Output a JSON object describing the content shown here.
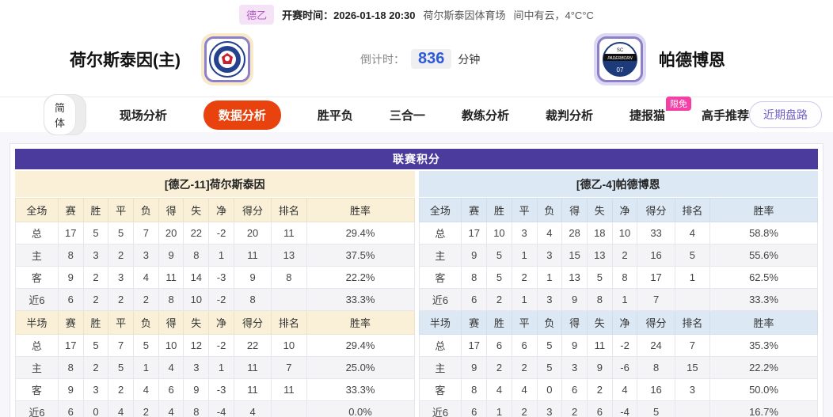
{
  "top_bar": {
    "league_badge": "德乙",
    "kickoff_label": "开赛时间：",
    "kickoff_time": "2026-01-18 20:30",
    "venue": "荷尔斯泰因体育场",
    "weather": "间中有云，4°C°C"
  },
  "match_header": {
    "home_name": "荷尔斯泰因(主)",
    "away_name": "帕德博恩",
    "countdown_label": "倒计时：",
    "countdown_value": "836",
    "countdown_unit": "分钟"
  },
  "nav": {
    "lang_simplified": "简体",
    "lang_traditional": "繁体",
    "tabs": [
      {
        "label": "现场分析"
      },
      {
        "label": "数据分析",
        "active": true
      },
      {
        "label": "胜平负"
      },
      {
        "label": "三合一"
      },
      {
        "label": "教练分析"
      },
      {
        "label": "裁判分析"
      },
      {
        "label": "捷报猫",
        "badge": "限免"
      },
      {
        "label": "高手推荐"
      }
    ],
    "recent_trend_button": "近期盘路"
  },
  "league_table": {
    "title": "联赛积分",
    "home_title": "[德乙-11]荷尔斯泰因",
    "away_title": "[德乙-4]帕德博恩",
    "columns_full": [
      "全场",
      "赛",
      "胜",
      "平",
      "负",
      "得",
      "失",
      "净",
      "得分",
      "排名",
      "胜率"
    ],
    "columns_half": [
      "半场",
      "赛",
      "胜",
      "平",
      "负",
      "得",
      "失",
      "净",
      "得分",
      "排名",
      "胜率"
    ],
    "home_full": [
      {
        "label": "总",
        "type": "total",
        "cells": [
          "17",
          "5",
          "5",
          "7",
          "20",
          "22",
          "-2",
          "20",
          "11",
          "29.4%"
        ]
      },
      {
        "label": "主",
        "type": "home",
        "cells": [
          "8",
          "3",
          "2",
          "3",
          "9",
          "8",
          "1",
          "11",
          "13",
          "37.5%"
        ]
      },
      {
        "label": "客",
        "type": "away",
        "cells": [
          "9",
          "2",
          "3",
          "4",
          "11",
          "14",
          "-3",
          "9",
          "8",
          "22.2%"
        ]
      },
      {
        "label": "近6",
        "type": "recent",
        "cells": [
          "6",
          "2",
          "2",
          "2",
          "8",
          "10",
          "-2",
          "8",
          "",
          "33.3%"
        ]
      }
    ],
    "home_half": [
      {
        "label": "总",
        "type": "total",
        "cells": [
          "17",
          "5",
          "7",
          "5",
          "10",
          "12",
          "-2",
          "22",
          "10",
          "29.4%"
        ]
      },
      {
        "label": "主",
        "type": "home",
        "cells": [
          "8",
          "2",
          "5",
          "1",
          "4",
          "3",
          "1",
          "11",
          "7",
          "25.0%"
        ]
      },
      {
        "label": "客",
        "type": "away",
        "cells": [
          "9",
          "3",
          "2",
          "4",
          "6",
          "9",
          "-3",
          "11",
          "11",
          "33.3%"
        ]
      },
      {
        "label": "近6",
        "type": "recent",
        "cells": [
          "6",
          "0",
          "4",
          "2",
          "4",
          "8",
          "-4",
          "4",
          "",
          "0.0%"
        ]
      }
    ],
    "away_full": [
      {
        "label": "总",
        "type": "total",
        "cells": [
          "17",
          "10",
          "3",
          "4",
          "28",
          "18",
          "10",
          "33",
          "4",
          "58.8%"
        ]
      },
      {
        "label": "主",
        "type": "home",
        "cells": [
          "9",
          "5",
          "1",
          "3",
          "15",
          "13",
          "2",
          "16",
          "5",
          "55.6%"
        ]
      },
      {
        "label": "客",
        "type": "away",
        "cells": [
          "8",
          "5",
          "2",
          "1",
          "13",
          "5",
          "8",
          "17",
          "1",
          "62.5%"
        ]
      },
      {
        "label": "近6",
        "type": "recent",
        "cells": [
          "6",
          "2",
          "1",
          "3",
          "9",
          "8",
          "1",
          "7",
          "",
          "33.3%"
        ]
      }
    ],
    "away_half": [
      {
        "label": "总",
        "type": "total",
        "cells": [
          "17",
          "6",
          "6",
          "5",
          "9",
          "11",
          "-2",
          "24",
          "7",
          "35.3%"
        ]
      },
      {
        "label": "主",
        "type": "home",
        "cells": [
          "9",
          "2",
          "2",
          "5",
          "3",
          "9",
          "-6",
          "8",
          "15",
          "22.2%"
        ]
      },
      {
        "label": "客",
        "type": "away",
        "cells": [
          "8",
          "4",
          "4",
          "0",
          "6",
          "2",
          "4",
          "16",
          "3",
          "50.0%"
        ]
      },
      {
        "label": "近6",
        "type": "recent",
        "cells": [
          "6",
          "1",
          "2",
          "3",
          "2",
          "6",
          "-4",
          "5",
          "",
          "16.7%"
        ]
      }
    ]
  },
  "colors": {
    "accent_orange": "#e8430e",
    "panel_purple": "#4a3b9c",
    "home_tint": "#faf0d8",
    "away_tint": "#dce9f5",
    "home_row_red": "#cc3333",
    "away_row_blue": "#3333cc",
    "league_badge_pink": "#f6e2f7",
    "limited_free_pink": "#f43fa6",
    "countdown_blue": "#2b5bd7",
    "recent_pill_purple": "#6e61c8"
  }
}
